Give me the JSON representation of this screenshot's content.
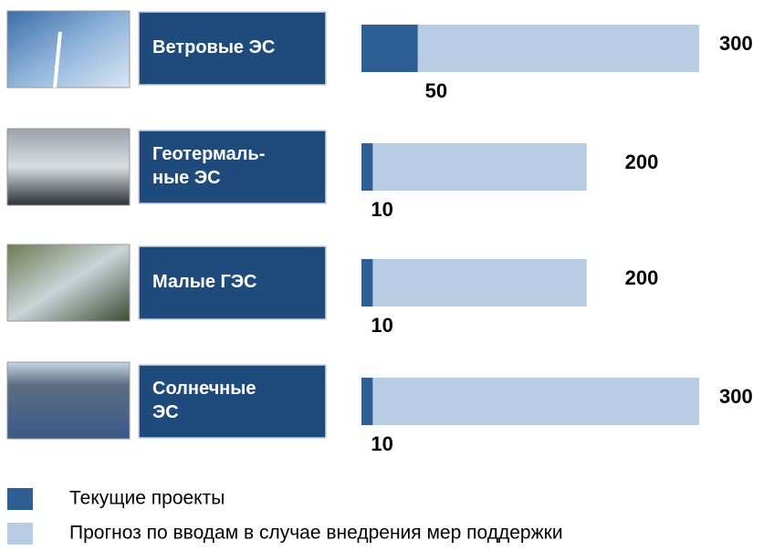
{
  "chart_data": {
    "type": "bar",
    "orientation": "horizontal",
    "categories": [
      "Ветровые ЭС",
      "Геотермаль-\nные ЭС",
      "Малые ГЭС",
      "Солнечные\nЭС"
    ],
    "series": [
      {
        "name": "Текущие проекты",
        "color": "#2e5f94",
        "values": [
          50,
          10,
          10,
          10
        ]
      },
      {
        "name": "Прогноз по вводам в случае внедрения мер поддержки",
        "color": "#b8cce4",
        "values": [
          300,
          200,
          200,
          300
        ]
      }
    ]
  }
}
